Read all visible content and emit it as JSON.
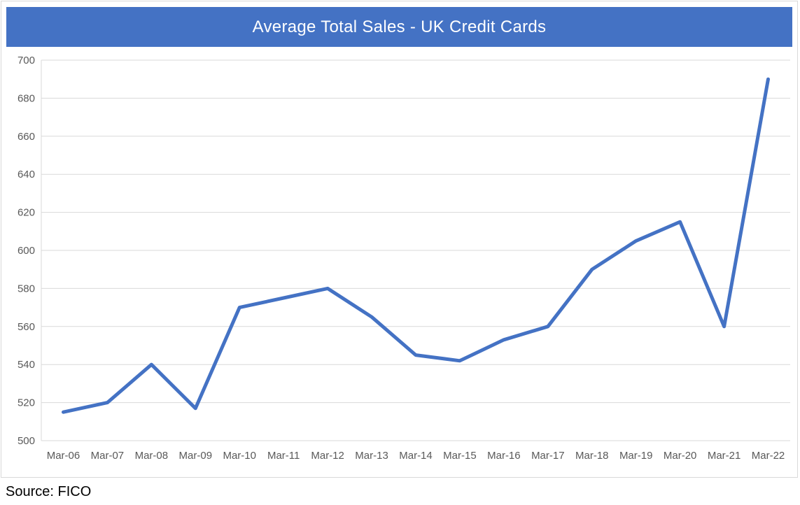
{
  "chart_data": {
    "type": "line",
    "title": "Average Total Sales - UK Credit Cards",
    "categories": [
      "Mar-06",
      "Mar-07",
      "Mar-08",
      "Mar-09",
      "Mar-10",
      "Mar-11",
      "Mar-12",
      "Mar-13",
      "Mar-14",
      "Mar-15",
      "Mar-16",
      "Mar-17",
      "Mar-18",
      "Mar-19",
      "Mar-20",
      "Mar-21",
      "Mar-22"
    ],
    "values": [
      515,
      520,
      540,
      517,
      570,
      575,
      580,
      565,
      545,
      542,
      553,
      560,
      590,
      605,
      615,
      560,
      690
    ],
    "xlabel": "",
    "ylabel": "",
    "ylim": [
      500,
      700
    ],
    "ytick_step": 20,
    "yticks": [
      500,
      520,
      540,
      560,
      580,
      600,
      620,
      640,
      660,
      680,
      700
    ],
    "grid": true,
    "legend": "none",
    "line_color": "#4472C4",
    "line_width": 5,
    "gridline_color": "#d9d9d9",
    "axis_label_color": "#595959",
    "title_bar_color": "#4472C4",
    "title_text_color": "#FFFFFF"
  },
  "footer": {
    "source_label": "Source: FICO"
  }
}
